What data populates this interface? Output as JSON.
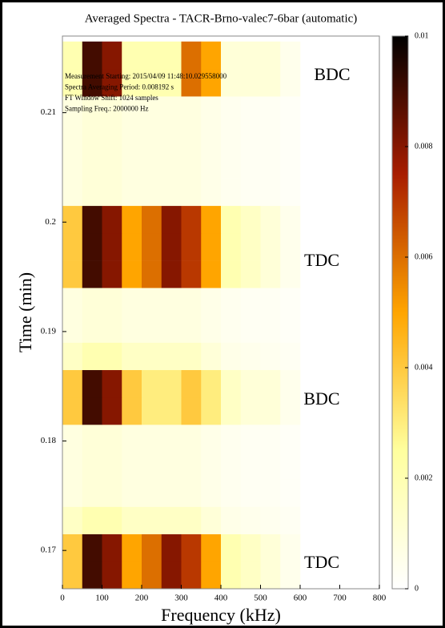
{
  "chart_data": {
    "type": "heatmap",
    "title": "Averaged Spectra - TACR-Brno-valec7-6bar (automatic)",
    "x_label": "Frequency (kHz)",
    "y_label": "Time (min)",
    "info_lines": [
      "Measurement Starting: 2015/04/09 11:48:10.029558000",
      "Spectra Averaging Period: 0.008192 s",
      "FT Window Shift: 1024 samples",
      "Sampling Freq.: 2000000 Hz"
    ],
    "annotations": [
      "BDC",
      "TDC",
      "BDC",
      "TDC"
    ],
    "xlim": [
      0,
      800
    ],
    "xticks": [
      0,
      100,
      200,
      300,
      400,
      500,
      600,
      700,
      800
    ],
    "ylim": [
      0.1665,
      0.217
    ],
    "yticks": [
      0.17,
      0.18,
      0.19,
      0.2,
      0.21
    ],
    "zlim": [
      0,
      0.01
    ],
    "zticks": [
      0,
      0.002,
      0.004,
      0.006,
      0.008,
      0.01
    ],
    "colormap": [
      "#ffffff",
      "#ffff9e",
      "#ffa500",
      "#a81d00",
      "#000000"
    ],
    "xbins": [
      0,
      50,
      100,
      150,
      200,
      250,
      300,
      350,
      400,
      450,
      500,
      550,
      600
    ],
    "ybins": [
      0.1665,
      0.169,
      0.1715,
      0.174,
      0.1765,
      0.179,
      0.1815,
      0.184,
      0.1865,
      0.189,
      0.1915,
      0.194,
      0.1965,
      0.199,
      0.2015,
      0.204,
      0.2065,
      0.209,
      0.2115,
      0.214,
      0.2165
    ],
    "values": [
      [
        0.004,
        0.009,
        0.008,
        0.005,
        0.006,
        0.008,
        0.007,
        0.005,
        0.002,
        0.0015,
        0.001,
        0.0005
      ],
      [
        0.004,
        0.009,
        0.008,
        0.005,
        0.006,
        0.008,
        0.007,
        0.005,
        0.002,
        0.0015,
        0.001,
        0.0005
      ],
      [
        0.0015,
        0.002,
        0.002,
        0.0015,
        0.0015,
        0.0015,
        0.0015,
        0.001,
        0.0006,
        0.0005,
        0.0004,
        0.0003
      ],
      [
        0.0008,
        0.001,
        0.001,
        0.0008,
        0.0008,
        0.0008,
        0.0008,
        0.0006,
        0.0004,
        0.0003,
        0.0003,
        0.0002
      ],
      [
        0.0008,
        0.001,
        0.001,
        0.0008,
        0.0008,
        0.0008,
        0.0008,
        0.0006,
        0.0004,
        0.0003,
        0.0003,
        0.0002
      ],
      [
        0.0008,
        0.001,
        0.001,
        0.0008,
        0.0008,
        0.0008,
        0.0008,
        0.0006,
        0.0004,
        0.0003,
        0.0003,
        0.0002
      ],
      [
        0.004,
        0.009,
        0.008,
        0.004,
        0.003,
        0.003,
        0.004,
        0.003,
        0.0015,
        0.001,
        0.001,
        0.0005
      ],
      [
        0.004,
        0.009,
        0.008,
        0.004,
        0.003,
        0.003,
        0.004,
        0.003,
        0.0015,
        0.001,
        0.001,
        0.0005
      ],
      [
        0.0015,
        0.002,
        0.002,
        0.0015,
        0.0015,
        0.0015,
        0.0015,
        0.001,
        0.0006,
        0.0005,
        0.0004,
        0.0003
      ],
      [
        0.0008,
        0.001,
        0.001,
        0.0008,
        0.0008,
        0.0008,
        0.0008,
        0.0006,
        0.0004,
        0.0003,
        0.0003,
        0.0002
      ],
      [
        0.0008,
        0.001,
        0.001,
        0.0008,
        0.0008,
        0.0008,
        0.0008,
        0.0006,
        0.0004,
        0.0003,
        0.0003,
        0.0002
      ],
      [
        0.004,
        0.009,
        0.008,
        0.005,
        0.006,
        0.008,
        0.007,
        0.005,
        0.002,
        0.0015,
        0.001,
        0.0005
      ],
      [
        0.004,
        0.009,
        0.008,
        0.005,
        0.006,
        0.008,
        0.007,
        0.005,
        0.002,
        0.0015,
        0.001,
        0.0005
      ],
      [
        0.004,
        0.009,
        0.008,
        0.005,
        0.006,
        0.008,
        0.007,
        0.005,
        0.002,
        0.0015,
        0.001,
        0.0005
      ],
      [
        0.0008,
        0.001,
        0.001,
        0.0008,
        0.0008,
        0.0008,
        0.0008,
        0.0006,
        0.0004,
        0.0003,
        0.0003,
        0.0002
      ],
      [
        0.0008,
        0.001,
        0.001,
        0.0008,
        0.0008,
        0.0008,
        0.0008,
        0.0006,
        0.0004,
        0.0003,
        0.0003,
        0.0002
      ],
      [
        0.0008,
        0.001,
        0.001,
        0.0008,
        0.0008,
        0.0008,
        0.0008,
        0.0006,
        0.0004,
        0.0003,
        0.0003,
        0.0002
      ],
      [
        0.0008,
        0.001,
        0.001,
        0.0008,
        0.0008,
        0.0008,
        0.0008,
        0.0006,
        0.0004,
        0.0003,
        0.0003,
        0.0002
      ],
      [
        0.002,
        0.009,
        0.008,
        0.002,
        0.002,
        0.002,
        0.006,
        0.005,
        0.001,
        0.001,
        0.001,
        0.0005
      ],
      [
        0.002,
        0.009,
        0.008,
        0.002,
        0.002,
        0.002,
        0.006,
        0.005,
        0.001,
        0.001,
        0.001,
        0.0005
      ]
    ]
  }
}
